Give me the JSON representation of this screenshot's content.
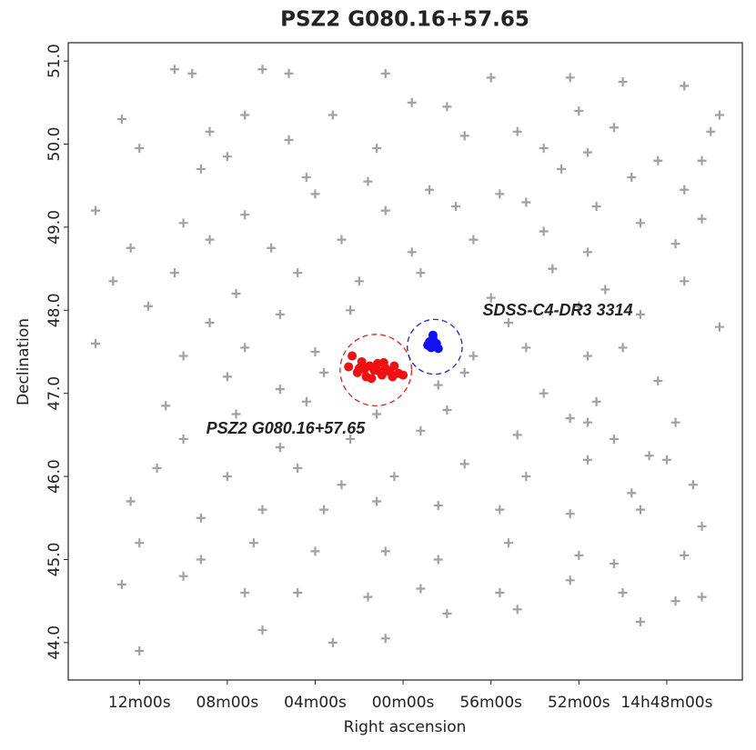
{
  "chart_data": {
    "type": "scatter",
    "title": "PSZ2 G080.16+57.65",
    "x_label": "Right ascension",
    "y_label": "Declination",
    "xlim": [
      228.81,
      221.14
    ],
    "ylim": [
      43.55,
      51.22
    ],
    "xticks": [
      {
        "value": 228.0,
        "label": "12m00s"
      },
      {
        "value": 227.0,
        "label": "08m00s"
      },
      {
        "value": 226.0,
        "label": "04m00s"
      },
      {
        "value": 225.0,
        "label": "00m00s"
      },
      {
        "value": 224.0,
        "label": "56m00s"
      },
      {
        "value": 223.0,
        "label": "52m00s"
      },
      {
        "value": 222.0,
        "label": "14h48m00s"
      }
    ],
    "yticks": [
      {
        "value": 44,
        "label": "44.0"
      },
      {
        "value": 45,
        "label": "45.0"
      },
      {
        "value": 46,
        "label": "46.0"
      },
      {
        "value": 47,
        "label": "47.0"
      },
      {
        "value": 48,
        "label": "48.0"
      },
      {
        "value": 49,
        "label": "49.0"
      },
      {
        "value": 50,
        "label": "50.0"
      },
      {
        "value": 51,
        "label": "51.0"
      }
    ],
    "series": [
      {
        "color": "#555555",
        "marker": "plus",
        "x": [
          227.6,
          227.4,
          226.6,
          226.3,
          225.2,
          224.0,
          223.1,
          222.5,
          221.8,
          228.2,
          227.2,
          226.8,
          225.8,
          224.9,
          224.5,
          223.7,
          223.0,
          222.6,
          221.5,
          221.4,
          228.0,
          227.0,
          226.3,
          225.3,
          224.3,
          223.4,
          222.9,
          222.1,
          221.6,
          227.3,
          226.1,
          225.4,
          224.7,
          223.9,
          223.2,
          222.4,
          221.8,
          228.5,
          227.5,
          226.8,
          226.0,
          225.2,
          224.4,
          223.6,
          222.8,
          222.3,
          221.6,
          228.1,
          227.2,
          226.5,
          225.7,
          224.9,
          224.2,
          223.4,
          222.9,
          221.9,
          228.3,
          227.6,
          226.9,
          226.2,
          225.5,
          224.8,
          224.0,
          223.3,
          222.7,
          221.8,
          227.9,
          227.2,
          226.4,
          225.6,
          223.8,
          223.0,
          222.3,
          221.4,
          228.5,
          227.5,
          226.8,
          226.0,
          224.2,
          223.6,
          222.9,
          222.5,
          227.0,
          226.4,
          225.9,
          224.6,
          224.3,
          223.4,
          222.8,
          222.1,
          227.7,
          226.9,
          226.1,
          225.3,
          224.5,
          223.1,
          222.9,
          221.9,
          227.5,
          226.4,
          225.6,
          224.8,
          223.7,
          222.6,
          222.2,
          222.0,
          227.8,
          227.0,
          226.2,
          225.7,
          225.1,
          224.3,
          223.6,
          222.9,
          222.4,
          221.7,
          228.1,
          227.3,
          226.6,
          225.9,
          225.3,
          224.6,
          223.9,
          223.1,
          222.3,
          221.6,
          228.0,
          227.3,
          226.7,
          226.0,
          225.2,
          224.6,
          223.8,
          223.0,
          222.6,
          221.8,
          228.2,
          227.5,
          226.8,
          226.2,
          225.4,
          224.8,
          223.9,
          223.1,
          222.5,
          221.6,
          228.0,
          226.6,
          225.8,
          225.2,
          224.5,
          223.7,
          222.3,
          221.9
        ],
        "y": [
          50.9,
          50.85,
          50.9,
          50.85,
          50.85,
          50.8,
          50.8,
          50.75,
          50.7,
          50.3,
          50.15,
          50.35,
          50.35,
          50.5,
          50.45,
          50.15,
          50.4,
          50.2,
          50.15,
          50.35,
          49.95,
          49.85,
          50.05,
          49.95,
          50.1,
          49.95,
          49.9,
          49.8,
          49.8,
          49.7,
          49.6,
          49.55,
          49.45,
          49.4,
          49.7,
          49.6,
          49.45,
          49.2,
          49.05,
          49.15,
          49.4,
          49.2,
          49.25,
          49.3,
          49.25,
          49.05,
          49.1,
          48.75,
          48.85,
          48.75,
          48.85,
          48.7,
          48.85,
          48.95,
          48.7,
          48.8,
          48.35,
          48.45,
          48.2,
          48.45,
          48.35,
          48.45,
          48.15,
          48.5,
          48.25,
          48.35,
          48.05,
          47.85,
          47.95,
          48.0,
          47.85,
          48.05,
          47.95,
          47.8,
          47.6,
          47.45,
          47.55,
          47.5,
          47.45,
          47.55,
          47.45,
          47.55,
          47.2,
          47.05,
          47.25,
          47.1,
          47.25,
          47.0,
          46.9,
          47.15,
          46.85,
          46.75,
          46.9,
          46.75,
          46.8,
          46.7,
          46.65,
          46.65,
          46.45,
          46.35,
          46.45,
          46.55,
          46.5,
          46.45,
          46.25,
          46.2,
          46.1,
          46.0,
          46.1,
          45.9,
          46.0,
          46.15,
          46.0,
          46.2,
          45.8,
          45.9,
          45.7,
          45.5,
          45.6,
          45.6,
          45.7,
          45.65,
          45.6,
          45.55,
          45.6,
          45.4,
          45.2,
          45.0,
          45.2,
          45.1,
          45.1,
          45.0,
          45.2,
          45.05,
          44.95,
          45.05,
          44.7,
          44.8,
          44.6,
          44.6,
          44.55,
          44.65,
          44.6,
          44.75,
          44.6,
          44.55,
          43.9,
          44.15,
          44.0,
          44.05,
          44.35,
          44.4,
          44.25,
          44.5
        ]
      },
      {
        "color": "#ee1111",
        "marker": "dot",
        "x": [
          225.62,
          225.58,
          225.52,
          225.47,
          225.42,
          225.38,
          225.33,
          225.29,
          225.24,
          225.2,
          225.15,
          225.1,
          225.05,
          225.0,
          225.5,
          225.36,
          225.22,
          225.12,
          225.44,
          225.28
        ],
        "y": [
          47.32,
          47.45,
          47.25,
          47.38,
          47.2,
          47.33,
          47.28,
          47.36,
          47.22,
          47.3,
          47.26,
          47.33,
          47.24,
          47.22,
          47.3,
          47.18,
          47.37,
          47.2,
          47.29,
          47.27
        ]
      },
      {
        "color": "#1111ee",
        "marker": "dot",
        "x": [
          224.7,
          224.66,
          224.62,
          224.68,
          224.64,
          224.72,
          224.6,
          224.66
        ],
        "y": [
          47.62,
          47.66,
          47.6,
          47.55,
          47.58,
          47.58,
          47.54,
          47.7
        ]
      }
    ],
    "circles": [
      {
        "x": 225.31,
        "y": 47.28,
        "r": 0.43,
        "color": "#dd2222"
      },
      {
        "x": 224.64,
        "y": 47.56,
        "r": 0.33,
        "color": "#2222cc"
      }
    ],
    "annotations": [
      "PSZ2 G080.16+57.65",
      "SDSS-C4-DR3 3314"
    ]
  }
}
